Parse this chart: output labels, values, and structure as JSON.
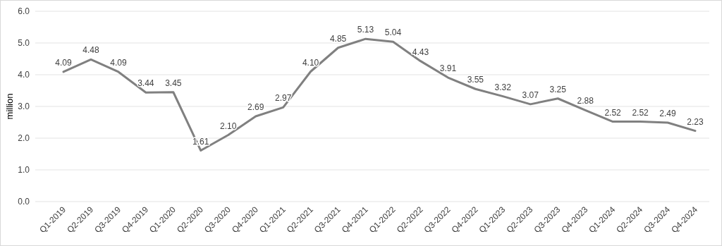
{
  "chart_data": {
    "type": "line",
    "ylabel": "million",
    "categories": [
      "Q1-2019",
      "Q2-2019",
      "Q3-2019",
      "Q4-2019",
      "Q1-2020",
      "Q2-2020",
      "Q3-2020",
      "Q4-2020",
      "Q1-2021",
      "Q2-2021",
      "Q3-2021",
      "Q4-2021",
      "Q1-2022",
      "Q2-2022",
      "Q3-2022",
      "Q4-2022",
      "Q1-2023",
      "Q2-2023",
      "Q3-2023",
      "Q4-2023",
      "Q1-2024",
      "Q2-2024",
      "Q3-2024",
      "Q4-2024"
    ],
    "series": [
      {
        "color": "#808080",
        "values": [
          4.09,
          4.48,
          4.09,
          3.44,
          3.45,
          1.61,
          2.1,
          2.69,
          2.97,
          4.1,
          4.85,
          5.13,
          5.04,
          4.43,
          3.91,
          3.55,
          3.32,
          3.07,
          3.25,
          2.88,
          2.52,
          2.52,
          2.49,
          2.23
        ],
        "value_labels": [
          "4.09",
          "4.48",
          "4.09",
          "3.44",
          "3.45",
          "1.61",
          "2.10",
          "2.69",
          "2.97",
          "4.10",
          "4.85",
          "5.13",
          "5.04",
          "4.43",
          "3.91",
          "3.55",
          "3.32",
          "3.07",
          "3.25",
          "2.88",
          "2.52",
          "2.52",
          "2.49",
          "2.23"
        ]
      }
    ],
    "ylim": [
      0,
      6
    ],
    "yticks": [
      {
        "value": 0,
        "label": "0.0"
      },
      {
        "value": 1,
        "label": "1.0"
      },
      {
        "value": 2,
        "label": "2.0"
      },
      {
        "value": 3,
        "label": "3.0"
      },
      {
        "value": 4,
        "label": "4.0"
      },
      {
        "value": 5,
        "label": "5.0"
      },
      {
        "value": 6,
        "label": "6.0"
      }
    ],
    "grid": "y",
    "marker": "none",
    "line_style": "solid"
  }
}
